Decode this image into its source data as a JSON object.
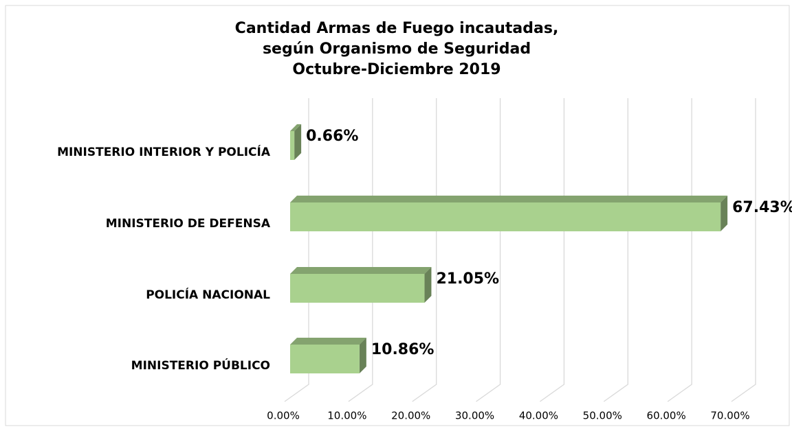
{
  "chart_data": {
    "type": "bar3d_horizontal",
    "title": [
      "Cantidad Armas de Fuego incautadas,",
      "según Organismo de Seguridad",
      "Octubre-Diciembre 2019"
    ],
    "categories": [
      "MINISTERIO INTERIOR Y POLICÍA",
      "MINISTERIO DE DEFENSA",
      "POLICÍA NACIONAL",
      "MINISTERIO PÚBLICO"
    ],
    "values": [
      0.66,
      67.43,
      21.05,
      10.86
    ],
    "value_labels": [
      "0.66%",
      "67.43%",
      "21.05%",
      "10.86%"
    ],
    "color": "#a9d18e",
    "xlim": [
      0,
      70
    ],
    "xticks": [
      {
        "value": 0,
        "label": "0.00%"
      },
      {
        "value": 10,
        "label": "10.00%"
      },
      {
        "value": 20,
        "label": "20.00%"
      },
      {
        "value": 30,
        "label": "30.00%"
      },
      {
        "value": 40,
        "label": "40.00%"
      },
      {
        "value": 50,
        "label": "50.00%"
      },
      {
        "value": 60,
        "label": "60.00%"
      },
      {
        "value": 70,
        "label": "70.00%"
      }
    ],
    "grid": true
  }
}
